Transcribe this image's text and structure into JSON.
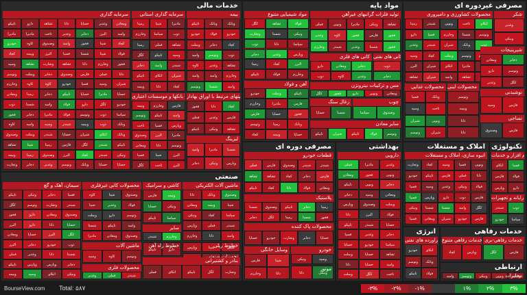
{
  "sectors": [
    {
      "key": "financial",
      "title": "خدمات مالی",
      "subs": [
        {
          "key": "investment",
          "title": "سرمایه گذاری"
        },
        {
          "key": "holdings",
          "title": "سرمایه گذاری استانی"
        },
        {
          "key": "insurance",
          "title": "بیمه"
        },
        {
          "key": "banks",
          "title": "بانکها و موسسات اعتباری"
        },
        {
          "key": "securities",
          "title": "فعالیتهای مرتبط با اوراق بهادار"
        },
        {
          "key": "leasing",
          "title": "لیزینگ"
        }
      ]
    },
    {
      "key": "basic",
      "title": "مواد پایه",
      "subs": [
        {
          "key": "chemical",
          "title": "مواد شیمیایی متنوع"
        },
        {
          "key": "nonferrous",
          "title": "تولید فلزات گرانبهای غیرآهن"
        },
        {
          "key": "metalores",
          "title": "کانی های فلزی"
        },
        {
          "key": "steel",
          "title": "آهن و فولاد"
        },
        {
          "key": "alloys",
          "title": "مس و ترکیبات نیترونژن"
        },
        {
          "key": "minerals",
          "title": "کانی های نفتی"
        },
        {
          "key": "coal",
          "title": "زغال سنگ"
        },
        {
          "key": "wood",
          "title": "چوب"
        },
        {
          "key": "mining",
          "title": "سایر معادن"
        }
      ]
    },
    {
      "key": "consumer",
      "title": "مصرفی غیردوره ای",
      "subs": [
        {
          "key": "agri",
          "title": "محصولات کشاورزی و دامپروری"
        },
        {
          "key": "sugar",
          "title": "شکر"
        },
        {
          "key": "food",
          "title": "محصولات غذایی"
        },
        {
          "key": "dairy",
          "title": "محصولات لبنی"
        },
        {
          "key": "sweets",
          "title": "شیرینیجات"
        },
        {
          "key": "drinks",
          "title": "نوشیدنی"
        },
        {
          "key": "textile",
          "title": "نساجی"
        }
      ]
    },
    {
      "key": "industrial",
      "title": "صنعتی",
      "subs": [
        {
          "key": "cement",
          "title": "سیمان، آهک و گچ"
        },
        {
          "key": "nonmetal",
          "title": "محصولات کانی غیرفلزی"
        },
        {
          "key": "tiles",
          "title": "کاشی و سرامیک"
        },
        {
          "key": "elec",
          "title": "ماشین آلات الکتریکی"
        },
        {
          "key": "other",
          "title": "سایر"
        },
        {
          "key": "lines",
          "title": "خطوط ریلی"
        },
        {
          "key": "machinery",
          "title": "ماشین آلات"
        },
        {
          "key": "roads",
          "title": "خطوط راه آهن"
        },
        {
          "key": "equipment",
          "title": "تجهیزات صنعتی"
        },
        {
          "key": "metalprod",
          "title": "محصولات فلزی"
        },
        {
          "key": "shipping",
          "title": "بنادر و کشتیرانی"
        }
      ]
    },
    {
      "key": "cyclical",
      "title": "مصرفی دوره ای",
      "subs": [
        {
          "key": "autoparts",
          "title": "قطعات خودرو"
        },
        {
          "key": "plastic",
          "title": "پلاستیک"
        },
        {
          "key": "cleaning",
          "title": "محصولات پاک کننده"
        },
        {
          "key": "appliances",
          "title": "وسایل خانگی"
        },
        {
          "key": "autos",
          "title": "خودرو"
        },
        {
          "key": "motor",
          "title": "موتور"
        }
      ]
    },
    {
      "key": "health",
      "title": "بهداشتی",
      "subs": [
        {
          "key": "pharma",
          "title": "دارویی"
        }
      ]
    },
    {
      "key": "realestate",
      "title": "املاک و مستغلات",
      "subs": [
        {
          "key": "construction",
          "title": "انبوه سازی، املاک و مستغلات"
        }
      ]
    },
    {
      "key": "tech",
      "title": "تکنولوژی",
      "subs": [
        {
          "key": "software",
          "title": "نرم افزار و خدمات"
        },
        {
          "key": "hardware",
          "title": "رایانه و تجهیزات"
        }
      ]
    },
    {
      "key": "energy",
      "title": "انرژی",
      "subs": [
        {
          "key": "petroleum",
          "title": "فراورده های نفتی"
        }
      ]
    },
    {
      "key": "welfare",
      "title": "خدمات رفاهی",
      "subs": [
        {
          "key": "services",
          "title": "خدمات رفاهی متنوع"
        },
        {
          "key": "recreation",
          "title": "خدمات رفاهی-بری"
        }
      ]
    },
    {
      "key": "telecom",
      "title": "ارتباطی",
      "subs": [
        {
          "key": "communications",
          "title": "مخابرات"
        }
      ]
    }
  ],
  "footer": {
    "site": "BourseView.com",
    "total_label": "Total: ۵۸۷",
    "legend": [
      {
        "label": "-۳%",
        "color": "#c0141f"
      },
      {
        "label": "-۲%",
        "color": "#a11a22"
      },
      {
        "label": "-۱%",
        "color": "#7d2226"
      },
      {
        "label": "",
        "color": "#3b3b3b"
      },
      {
        "label": "۱%",
        "color": "#227a33"
      },
      {
        "label": "۲%",
        "color": "#1f9a36"
      },
      {
        "label": "۳%",
        "color": "#24c13c"
      }
    ]
  }
}
